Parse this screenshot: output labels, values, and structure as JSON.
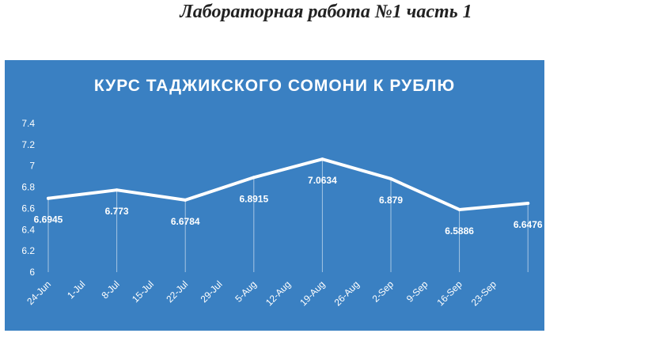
{
  "document": {
    "title": "Лабораторная работа №1 часть 1"
  },
  "chart_data": {
    "type": "line",
    "title": "КУРС ТАДЖИКСКОГО СОМОНИ К РУБЛЮ",
    "xlabel": "",
    "ylabel": "",
    "ylim": [
      6,
      7.4
    ],
    "yticks": [
      "6",
      "6.2",
      "6.4",
      "6.6",
      "6.8",
      "7",
      "7.2",
      "7.4"
    ],
    "x_tick_labels": [
      "24-Jun",
      "1-Jul",
      "8-Jul",
      "15-Jul",
      "22-Jul",
      "29-Jul",
      "5-Aug",
      "12-Aug",
      "19-Aug",
      "26-Aug",
      "2-Sep",
      "9-Sep",
      "16-Sep",
      "23-Sep"
    ],
    "x": [
      "24-Jun",
      "8-Jul",
      "22-Jul",
      "5-Aug",
      "19-Aug",
      "2-Sep",
      "16-Sep",
      "30-Sep"
    ],
    "series": [
      {
        "values": [
          6.6945,
          6.773,
          6.6784,
          6.8915,
          7.0634,
          6.879,
          6.5886,
          6.6476
        ],
        "labels": [
          "6.6945",
          "6.773",
          "6.6784",
          "6.8915",
          "7.0634",
          "6.879",
          "6.5886",
          "6.6476"
        ]
      }
    ],
    "grid": false,
    "drop_lines": true,
    "colors": {
      "background": "#3a80c2",
      "line": "#ffffff",
      "text": "#ffffff"
    }
  }
}
